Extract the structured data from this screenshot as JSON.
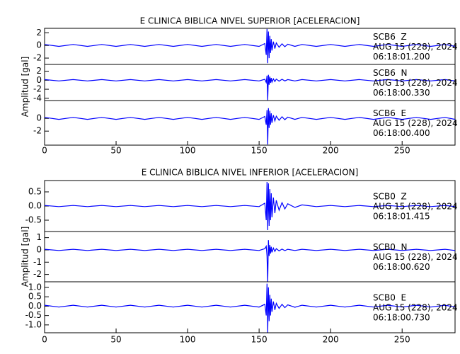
{
  "chart_data": [
    {
      "type": "line",
      "title": "E CLINICA BIBLICA NIVEL SUPERIOR [ACELERACION]",
      "y_label": "Amplitud [gal]",
      "xlim": [
        0,
        287
      ],
      "xticks": [
        0,
        50,
        100,
        150,
        200,
        250
      ],
      "x": [
        0,
        10,
        20,
        30,
        40,
        50,
        60,
        70,
        80,
        90,
        100,
        110,
        120,
        130,
        140,
        150,
        154,
        155,
        155.5,
        156,
        156.5,
        157,
        157.5,
        158,
        158.5,
        159,
        160,
        161,
        162,
        164,
        166,
        168,
        170,
        175,
        180,
        190,
        200,
        210,
        220,
        230,
        240,
        250,
        260,
        270,
        280,
        287
      ],
      "series": [
        {
          "name": "SCB6  Z",
          "date": "AUG 15 (228), 2024",
          "time": "06:18:01.200",
          "color": "#0000ff",
          "ylim": [
            -3,
            2.7
          ],
          "yticks": [
            2,
            0,
            -2
          ],
          "values": [
            0.15,
            -0.15,
            0.15,
            -0.15,
            0.15,
            -0.15,
            0.15,
            -0.15,
            0.15,
            -0.15,
            0.15,
            -0.15,
            0.15,
            -0.15,
            0.15,
            -0.15,
            0.3,
            -1.5,
            2.6,
            -2.8,
            2.2,
            -2.0,
            1.5,
            -1.2,
            1.0,
            -0.8,
            0.6,
            -0.5,
            0.4,
            -0.3,
            0.25,
            -0.2,
            0.2,
            -0.15,
            0.15,
            -0.15,
            0.15,
            -0.15,
            0.15,
            -0.15,
            0.15,
            -0.15,
            0.15,
            -0.15,
            0.15,
            -0.15
          ]
        },
        {
          "name": "SCB6  N",
          "date": "AUG 15 (228), 2024",
          "time": "06:18:00.330",
          "color": "#0000ff",
          "ylim": [
            -4.5,
            3.5
          ],
          "yticks": [
            2,
            0,
            -2,
            -4
          ],
          "values": [
            0.15,
            -0.15,
            0.15,
            -0.15,
            0.15,
            -0.15,
            0.15,
            -0.15,
            0.15,
            -0.15,
            0.15,
            -0.15,
            0.15,
            -0.15,
            0.15,
            -0.15,
            0.2,
            -0.5,
            1.0,
            -4.4,
            1.2,
            -1.0,
            0.8,
            -0.6,
            0.5,
            -0.4,
            0.3,
            -0.3,
            0.25,
            -0.2,
            0.2,
            -0.15,
            0.15,
            -0.15,
            0.15,
            -0.15,
            0.15,
            -0.15,
            0.15,
            -0.15,
            0.15,
            -0.15,
            0.15,
            -0.15,
            0.15,
            -0.15
          ]
        },
        {
          "name": "SCB6  E",
          "date": "AUG 15 (228), 2024",
          "time": "06:18:00.400",
          "color": "#0000ff",
          "ylim": [
            -4.2,
            2.8
          ],
          "yticks": [
            0,
            -2
          ],
          "values": [
            0.15,
            -0.15,
            0.15,
            -0.15,
            0.15,
            -0.15,
            0.15,
            -0.15,
            0.15,
            -0.15,
            0.15,
            -0.15,
            0.15,
            -0.15,
            0.15,
            -0.15,
            0.3,
            -1.0,
            1.3,
            -4.1,
            1.6,
            -1.5,
            1.2,
            -1.0,
            0.8,
            -0.7,
            0.5,
            -0.4,
            0.35,
            -0.3,
            0.25,
            -0.2,
            0.2,
            -0.15,
            0.15,
            -0.15,
            0.15,
            -0.15,
            0.15,
            -0.15,
            0.15,
            -0.15,
            0.15,
            -0.15,
            0.15,
            -0.15
          ]
        }
      ]
    },
    {
      "type": "line",
      "title": "E CLINICA BIBLICA NIVEL INFERIOR [ACELERACION]",
      "y_label": "Amplitud [gal]",
      "xlim": [
        0,
        287
      ],
      "xticks": [
        0,
        50,
        100,
        150,
        200,
        250
      ],
      "x": [
        0,
        10,
        20,
        30,
        40,
        50,
        60,
        70,
        80,
        90,
        100,
        110,
        120,
        130,
        140,
        150,
        154,
        155,
        155.5,
        156,
        156.5,
        157,
        157.5,
        158,
        158.5,
        159,
        160,
        161,
        162,
        164,
        166,
        168,
        170,
        175,
        180,
        190,
        200,
        210,
        220,
        230,
        240,
        250,
        260,
        270,
        280,
        287
      ],
      "series": [
        {
          "name": "SCB0  Z",
          "date": "AUG 15 (228), 2024",
          "time": "06:18:01.415",
          "color": "#0000ff",
          "ylim": [
            -0.9,
            0.9
          ],
          "yticks": [
            0.5,
            {
              "value": 0,
              "label": "0.0"
            },
            -0.5
          ],
          "values": [
            0.02,
            -0.02,
            0.02,
            -0.02,
            0.02,
            -0.02,
            0.02,
            -0.02,
            0.02,
            -0.02,
            0.02,
            -0.02,
            0.02,
            -0.02,
            0.02,
            -0.02,
            0.1,
            -0.5,
            0.85,
            -0.85,
            0.8,
            -0.7,
            0.6,
            -0.5,
            0.45,
            -0.4,
            0.3,
            -0.25,
            0.2,
            -0.15,
            0.12,
            -0.1,
            0.08,
            -0.05,
            0.04,
            -0.02,
            0.02,
            -0.02,
            0.02,
            -0.02,
            0.02,
            -0.02,
            0.02,
            -0.02,
            0.02,
            -0.02
          ]
        },
        {
          "name": "SCB0  N",
          "date": "AUG 15 (228), 2024",
          "time": "06:18:00.620",
          "color": "#0000ff",
          "ylim": [
            -2.6,
            1.5
          ],
          "yticks": [
            1,
            0,
            -1,
            -2
          ],
          "values": [
            0.05,
            -0.05,
            0.05,
            -0.05,
            0.05,
            -0.05,
            0.05,
            -0.05,
            0.05,
            -0.05,
            0.05,
            -0.05,
            0.05,
            -0.05,
            0.05,
            -0.05,
            0.1,
            0.3,
            -0.5,
            -2.6,
            0.8,
            -0.5,
            0.4,
            -0.3,
            0.25,
            -0.2,
            0.15,
            -0.12,
            0.1,
            -0.08,
            0.07,
            -0.06,
            0.05,
            -0.05,
            0.05,
            -0.05,
            0.05,
            -0.05,
            0.05,
            -0.05,
            0.05,
            -0.05,
            0.05,
            -0.05,
            0.05,
            -0.05
          ]
        },
        {
          "name": "SCB0  E",
          "date": "AUG 15 (228), 2024",
          "time": "06:18:00.730",
          "color": "#0000ff",
          "ylim": [
            -1.42,
            1.3
          ],
          "yticks": [
            {
              "value": 1,
              "label": "1.0"
            },
            0.5,
            {
              "value": 0,
              "label": "0.0"
            },
            -0.5,
            {
              "value": -1,
              "label": "-1.0"
            }
          ],
          "values": [
            0.05,
            -0.05,
            0.05,
            -0.05,
            0.05,
            -0.05,
            0.05,
            -0.05,
            0.05,
            -0.05,
            0.05,
            -0.05,
            0.05,
            -0.05,
            0.05,
            -0.05,
            0.1,
            -0.5,
            1.2,
            -1.4,
            1.0,
            -0.8,
            0.6,
            -0.5,
            0.4,
            -0.3,
            0.25,
            -0.2,
            0.15,
            -0.12,
            0.1,
            -0.08,
            0.07,
            -0.06,
            0.05,
            -0.05,
            0.05,
            -0.05,
            0.05,
            -0.05,
            0.05,
            -0.05,
            0.05,
            -0.05,
            0.05,
            -0.05
          ]
        }
      ]
    }
  ]
}
